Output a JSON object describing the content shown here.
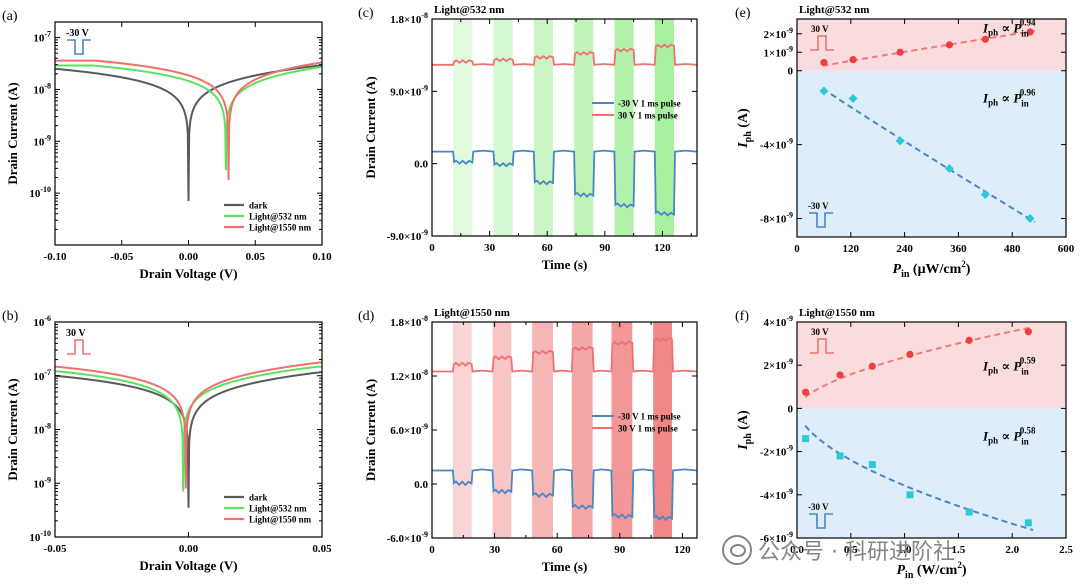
{
  "colors": {
    "dark": "#5a5a5a",
    "green": "#5ee15e",
    "red": "#f07070",
    "blue": "#4a86c4",
    "pinkbg": "#fadcdc",
    "bluebg": "#ddeefa",
    "greenShade": "#a8f0a0",
    "redShade": "#f08888",
    "fitRed": "#f27a7a",
    "fitBlue": "#4a86c4",
    "ptRed": "#ee4040",
    "ptCyan": "#2ec8d8"
  },
  "watermark": {
    "text": "公众号 · 科研进阶社"
  },
  "chart_data": [
    {
      "id": "a",
      "panel_label": "(a)",
      "type": "line",
      "xlabel": "Drain Voltage (V)",
      "ylabel": "Drain Current (A)",
      "xlim": [
        -0.1,
        0.1
      ],
      "ylog": true,
      "ylim_exp": [
        -11,
        -6.7
      ],
      "xticks": [
        -0.1,
        -0.05,
        0,
        0.05,
        0.1
      ],
      "xtick_labels": [
        "-0.10",
        "-0.05",
        "0.00",
        "0.05",
        "0.10"
      ],
      "yticks_exp": [
        -10,
        -9,
        -8,
        -7
      ],
      "ytick_labels": [
        "10",
        "10",
        "10",
        "10"
      ],
      "ytick_sups": [
        "-10",
        "-9",
        "-8",
        "-7"
      ],
      "inset": {
        "label": "-30 V",
        "pulse": "neg",
        "color": "blue"
      },
      "legend": [
        "dark",
        "Light@532 nm",
        "Light@1550 nm"
      ],
      "series": [
        {
          "name": "dark",
          "color": "dark",
          "dip_x": 0.0,
          "I0": 2.5e-08,
          "dip": 7e-11
        },
        {
          "name": "Light@532 nm",
          "color": "green",
          "dip_x": 0.028,
          "I0": 2.9e-08,
          "dip": 2.8e-10
        },
        {
          "name": "Light@1550 nm",
          "color": "red",
          "dip_x": 0.03,
          "I0": 3.6e-08,
          "dip": 1.8e-10
        }
      ]
    },
    {
      "id": "b",
      "panel_label": "(b)",
      "type": "line",
      "xlabel": "Drain Voltage (V)",
      "ylabel": "Drain Current (A)",
      "xlim": [
        -0.05,
        0.05
      ],
      "ylog": true,
      "ylim_exp": [
        -10,
        -6
      ],
      "xticks": [
        -0.05,
        0,
        0.05
      ],
      "xtick_labels": [
        "-0.05",
        "0.00",
        "0.05"
      ],
      "yticks_exp": [
        -10,
        -9,
        -8,
        -7,
        -6
      ],
      "ytick_labels": [
        "10",
        "10",
        "10",
        "10",
        "10"
      ],
      "ytick_sups": [
        "-10",
        "-9",
        "-8",
        "-7",
        "-6"
      ],
      "inset": {
        "label": "30 V",
        "pulse": "pos",
        "color": "red"
      },
      "legend": [
        "dark",
        "Light@532 nm",
        "Light@1550 nm"
      ],
      "series": [
        {
          "name": "dark",
          "color": "dark",
          "dip_x": 0.0,
          "I0": 1e-07,
          "dip": 3.5e-10
        },
        {
          "name": "Light@532 nm",
          "color": "green",
          "dip_x": -0.002,
          "I0": 1.25e-07,
          "dip": 7e-10
        },
        {
          "name": "Light@1550 nm",
          "color": "red",
          "dip_x": -0.001,
          "I0": 1.5e-07,
          "dip": 8e-10
        }
      ]
    },
    {
      "id": "c",
      "panel_label": "(c)",
      "type": "line",
      "title": "Light@532 nm",
      "xlabel": "Time (s)",
      "ylabel": "Drain Current (A)",
      "xlim": [
        0,
        138
      ],
      "ylim": [
        -9e-09,
        1.8e-08
      ],
      "xticks": [
        0,
        30,
        60,
        90,
        120
      ],
      "xtick_labels": [
        "0",
        "30",
        "60",
        "90",
        "120"
      ],
      "yticks": [
        -9e-09,
        0,
        9e-09,
        1.8e-08
      ],
      "ytick_labels": [
        "-9.0×10",
        "0.0",
        "9.0×10",
        "1.8×10"
      ],
      "ytick_sups": [
        "-9",
        "",
        "-9",
        "-8"
      ],
      "shade_color": "greenShade",
      "windows": [
        [
          11,
          21
        ],
        [
          32,
          42
        ],
        [
          53,
          63
        ],
        [
          74,
          84
        ],
        [
          95,
          105
        ],
        [
          116,
          126
        ]
      ],
      "shade_opacity": [
        0.35,
        0.5,
        0.65,
        0.8,
        1.0,
        1.2
      ],
      "legend": [
        "-30 V 1 ms pulse",
        "30 V 1 ms pulse"
      ],
      "series": [
        {
          "name": "30 V 1 ms pulse",
          "color": "red",
          "base": 1.23e-08,
          "levels": [
            1.27e-08,
            1.29e-08,
            1.32e-08,
            1.37e-08,
            1.41e-08,
            1.46e-08
          ]
        },
        {
          "name": "-30 V 1 ms pulse",
          "color": "blue",
          "base": 1.5e-09,
          "levels": [
            2e-10,
            -1e-10,
            -2.3e-09,
            -3.8e-09,
            -5.1e-09,
            -6.1e-09
          ]
        }
      ]
    },
    {
      "id": "d",
      "panel_label": "(d)",
      "type": "line",
      "title": "Light@1550 nm",
      "xlabel": "Time (s)",
      "ylabel": "Drain Current (A)",
      "xlim": [
        0,
        127
      ],
      "ylim": [
        -6e-09,
        1.8e-08
      ],
      "xticks": [
        0,
        30,
        60,
        90,
        120
      ],
      "xtick_labels": [
        "0",
        "30",
        "60",
        "90",
        "120"
      ],
      "yticks": [
        -6e-09,
        0,
        6e-09,
        1.2e-08,
        1.8e-08
      ],
      "ytick_labels": [
        "-6.0×10",
        "0.0",
        "6.0×10",
        "1.2×10",
        "1.8×10"
      ],
      "ytick_sups": [
        "-9",
        "",
        "-9",
        "-8",
        "-8"
      ],
      "shade_color": "redShade",
      "windows": [
        [
          10,
          19
        ],
        [
          29,
          38
        ],
        [
          48,
          58
        ],
        [
          67,
          77
        ],
        [
          86,
          96
        ],
        [
          106,
          115
        ]
      ],
      "shade_opacity": [
        0.25,
        0.35,
        0.5,
        0.65,
        0.8,
        1.0
      ],
      "legend": [
        "-30 V 1 ms pulse",
        "30 V 1 ms pulse"
      ],
      "series": [
        {
          "name": "30 V 1 ms pulse",
          "color": "red",
          "base": 1.25e-08,
          "levels": [
            1.33e-08,
            1.4e-08,
            1.46e-08,
            1.5e-08,
            1.56e-08,
            1.6e-08
          ]
        },
        {
          "name": "-30 V 1 ms pulse",
          "color": "blue",
          "base": 1.5e-09,
          "levels": [
            1e-10,
            -8e-10,
            -1.2e-09,
            -2.5e-09,
            -3.5e-09,
            -3.7e-09
          ]
        }
      ]
    },
    {
      "id": "e",
      "panel_label": "(e)",
      "type": "scatter",
      "title": "Light@532 nm",
      "xlabel_main": "P",
      "xlabel_sub": "in",
      "xlabel_unit": " (μW/cm",
      "xlabel_sup": "2",
      "xlabel_end": ")",
      "ylabel_main": "I",
      "ylabel_sub": "ph",
      "ylabel_unit": " (A)",
      "xlim": [
        0,
        600
      ],
      "ylim": [
        -9e-09,
        2.8e-09
      ],
      "xticks": [
        0,
        120,
        240,
        360,
        480,
        600
      ],
      "xtick_labels": [
        "0",
        "120",
        "240",
        "360",
        "480",
        "600"
      ],
      "yticks": [
        -8e-09,
        -4e-09,
        0,
        1e-09,
        2e-09
      ],
      "ytick_labels": [
        "-8×10",
        "-4×10",
        "0",
        "1×10",
        "2×10"
      ],
      "ytick_sups": [
        "-9",
        "-9",
        "",
        "-9",
        "-9"
      ],
      "top_inset": "30 V",
      "bottom_inset": "-30 V",
      "series": [
        {
          "name": "30 V",
          "color": "ptRed",
          "marker": "circle",
          "x": [
            60,
            125,
            230,
            340,
            420,
            520
          ],
          "y": [
            4.5e-10,
            6e-10,
            1e-09,
            1.4e-09,
            1.7e-09,
            2.1e-09
          ],
          "exponent": 0.94,
          "formula": [
            "I",
            "ph",
            " ∝ ",
            "P",
            "in",
            "0.94"
          ]
        },
        {
          "name": "-30 V",
          "color": "ptCyan",
          "marker": "diamond",
          "x": [
            60,
            125,
            230,
            340,
            420,
            520
          ],
          "y": [
            -1.1e-09,
            -1.5e-09,
            -3.8e-09,
            -5.3e-09,
            -6.7e-09,
            -8e-09
          ],
          "exponent": 0.96,
          "formula": [
            "I",
            "ph",
            " ∝ ",
            "P",
            "in",
            "0.96"
          ]
        }
      ]
    },
    {
      "id": "f",
      "panel_label": "(f)",
      "type": "scatter",
      "title": "Light@1550 nm",
      "xlabel_main": "P",
      "xlabel_sub": "in",
      "xlabel_unit": " (W/cm",
      "xlabel_sup": "2",
      "xlabel_end": ")",
      "ylabel_main": "I",
      "ylabel_sub": "ph",
      "ylabel_unit": " (A)",
      "xlim": [
        0,
        2.5
      ],
      "ylim": [
        -6e-09,
        4e-09
      ],
      "xticks": [
        0,
        0.5,
        1.0,
        1.5,
        2.0,
        2.5
      ],
      "xtick_labels": [
        "0.0",
        "0.5",
        "1.0",
        "1.5",
        "2.0",
        "2.5"
      ],
      "yticks": [
        -6e-09,
        -4e-09,
        -2e-09,
        0,
        2e-09,
        4e-09
      ],
      "ytick_labels": [
        "-6×10",
        "-4×10",
        "-2×10",
        "0",
        "2×10",
        "4×10"
      ],
      "ytick_sups": [
        "-9",
        "-9",
        "-9",
        "",
        "-9",
        "-9"
      ],
      "top_inset": "30 V",
      "bottom_inset": "-30 V",
      "series": [
        {
          "name": "30 V",
          "color": "ptRed",
          "marker": "circle",
          "x": [
            0.08,
            0.4,
            0.7,
            1.05,
            1.6,
            2.15
          ],
          "y": [
            7.5e-10,
            1.55e-09,
            1.95e-09,
            2.5e-09,
            3.15e-09,
            3.55e-09
          ],
          "exponent": 0.59,
          "formula": [
            "I",
            "ph",
            " ∝ ",
            "P",
            "in",
            "0.59"
          ]
        },
        {
          "name": "-30 V",
          "color": "ptCyan",
          "marker": "square",
          "x": [
            0.08,
            0.4,
            0.7,
            1.05,
            1.6,
            2.15
          ],
          "y": [
            -1.4e-09,
            -2.2e-09,
            -2.6e-09,
            -4e-09,
            -4.8e-09,
            -5.3e-09
          ],
          "exponent": 0.58,
          "formula": [
            "I",
            "ph",
            " ∝ ",
            "P",
            "in",
            "0.58"
          ]
        }
      ]
    }
  ]
}
